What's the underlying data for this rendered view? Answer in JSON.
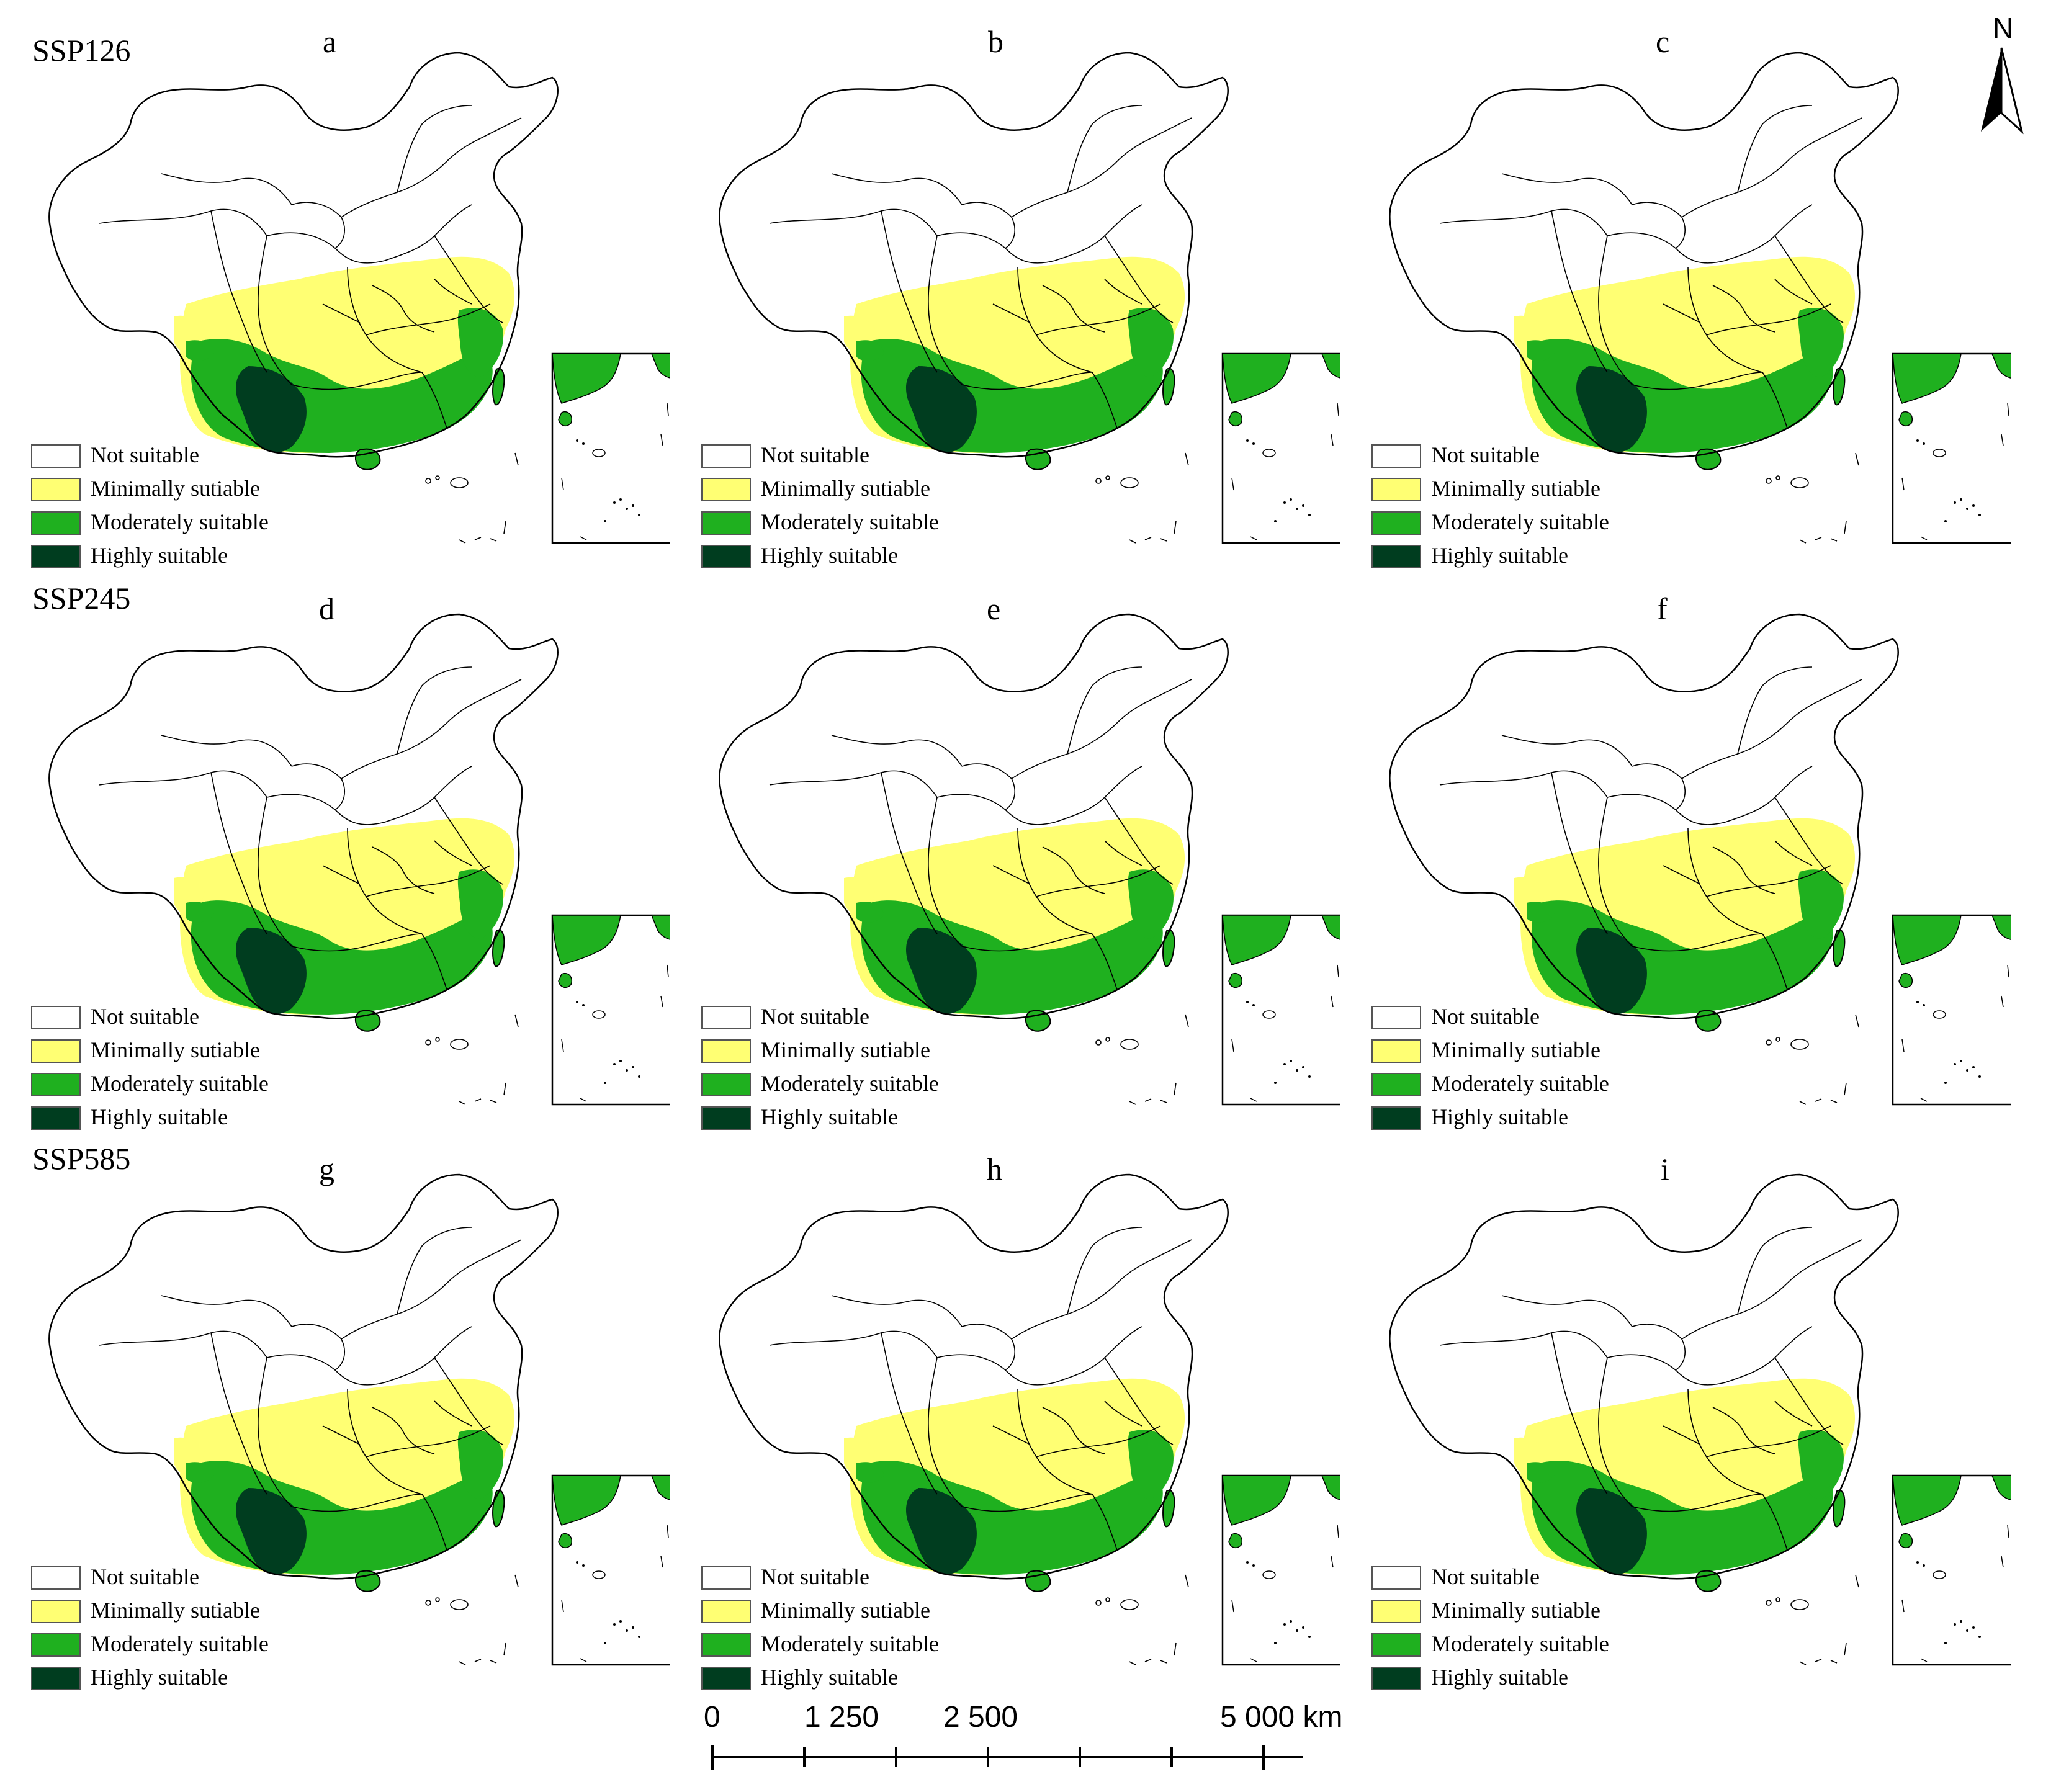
{
  "scenarios": [
    {
      "label": "SSP126",
      "panels": [
        "a",
        "b",
        "c"
      ]
    },
    {
      "label": "SSP245",
      "panels": [
        "d",
        "e",
        "f"
      ]
    },
    {
      "label": "SSP585",
      "panels": [
        "g",
        "h",
        "i"
      ]
    }
  ],
  "legend": [
    {
      "label": "Not suitable",
      "color": "#ffffff"
    },
    {
      "label": "Minimally sutiable",
      "color": "#ffff73"
    },
    {
      "label": "Moderately suitable",
      "color": "#1fb01f"
    },
    {
      "label": "Highly suitable",
      "color": "#003d1f"
    }
  ],
  "north_arrow": {
    "label": "N"
  },
  "scale_bar": {
    "ticks": [
      "0",
      "1 250",
      "2 500",
      "5 000 km"
    ]
  },
  "colors": {
    "boundary": "#000000",
    "minimal": "#ffff73",
    "moderate": "#1fb01f",
    "high": "#003d1f"
  }
}
